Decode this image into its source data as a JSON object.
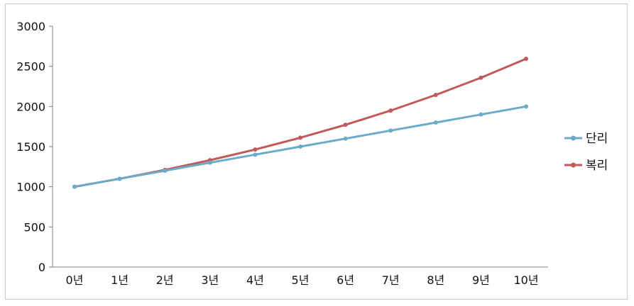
{
  "chart_data": {
    "type": "line",
    "categories": [
      "0년",
      "1년",
      "2년",
      "3년",
      "4년",
      "5년",
      "6년",
      "7년",
      "8년",
      "9년",
      "10년"
    ],
    "series": [
      {
        "name": "단리",
        "color": "#6baac8",
        "values": [
          1000,
          1100,
          1200,
          1300,
          1400,
          1500,
          1600,
          1700,
          1800,
          1900,
          2000
        ]
      },
      {
        "name": "복리",
        "color": "#c0595a",
        "values": [
          1000,
          1100,
          1210,
          1331,
          1464,
          1611,
          1772,
          1949,
          2144,
          2358,
          2594
        ]
      }
    ],
    "y_ticks": [
      "0",
      "500",
      "1000",
      "1500",
      "2000",
      "2500",
      "3000"
    ],
    "ylim": [
      0,
      3000
    ],
    "title": "",
    "xlabel": "",
    "ylabel": "",
    "grid": false,
    "legend_position": "right"
  }
}
